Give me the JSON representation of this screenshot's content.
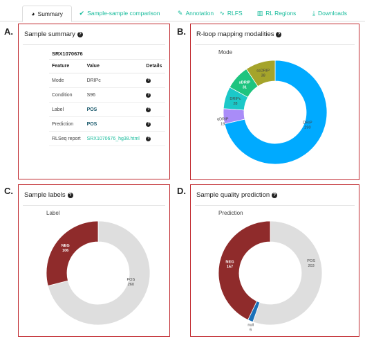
{
  "tabs": [
    {
      "label": "Summary",
      "icon": "palette-icon",
      "glyph": "◕",
      "active": true
    },
    {
      "label": "Sample-sample comparison",
      "icon": "check-double-icon",
      "glyph": "✔",
      "active": false
    },
    {
      "label": "Annotation",
      "icon": "brush-icon",
      "glyph": "✎",
      "active": false
    },
    {
      "label": "RLFS",
      "icon": "wave-icon",
      "glyph": "∿",
      "active": false
    },
    {
      "label": "RL Regions",
      "icon": "map-icon",
      "glyph": "▥",
      "active": false
    },
    {
      "label": "Downloads",
      "icon": "download-icon",
      "glyph": "⤓",
      "active": false
    }
  ],
  "panels": {
    "a": {
      "letter": "A.",
      "title": "Sample summary",
      "sample_id": "SRX1070676",
      "table": {
        "headers": [
          "Feature",
          "Value",
          "Details"
        ],
        "rows": [
          {
            "feature": "Mode",
            "value": "DRIPc",
            "style": "plain"
          },
          {
            "feature": "Condition",
            "value": "S96",
            "style": "plain"
          },
          {
            "feature": "Label",
            "value": "POS",
            "style": "bold-link"
          },
          {
            "feature": "Prediction",
            "value": "POS",
            "style": "bold-link"
          },
          {
            "feature": "RLSeq report",
            "value": "SRX1070676_hg38.html",
            "style": "link"
          }
        ]
      }
    },
    "b": {
      "letter": "B.",
      "title": "R-loop mapping modalities",
      "legend_title": "Mode"
    },
    "c": {
      "letter": "C.",
      "title": "Sample labels",
      "legend_title": "Label"
    },
    "d": {
      "letter": "D.",
      "title": "Sample quality prediction",
      "legend_title": "Prediction"
    }
  },
  "chart_data": [
    {
      "type": "pie",
      "title": "Mode",
      "categories": [
        "DRIP",
        "qDRIP",
        "DRIPc",
        "sDRIP",
        "ssDRIP"
      ],
      "values": [
        290,
        19,
        28,
        31,
        38
      ],
      "colors": [
        "#00aaff",
        "#a98cf8",
        "#1cc8c8",
        "#1ec47f",
        "#a5a42b"
      ]
    },
    {
      "type": "pie",
      "title": "Label",
      "categories": [
        "POS",
        "NEG"
      ],
      "values": [
        260,
        106
      ],
      "colors": [
        "#dedede",
        "#8f2b2b"
      ]
    },
    {
      "type": "pie",
      "title": "Prediction",
      "categories": [
        "POS",
        "null",
        "NEG"
      ],
      "values": [
        203,
        6,
        157
      ],
      "colors": [
        "#dedede",
        "#1a70b8",
        "#8f2b2b"
      ]
    }
  ]
}
